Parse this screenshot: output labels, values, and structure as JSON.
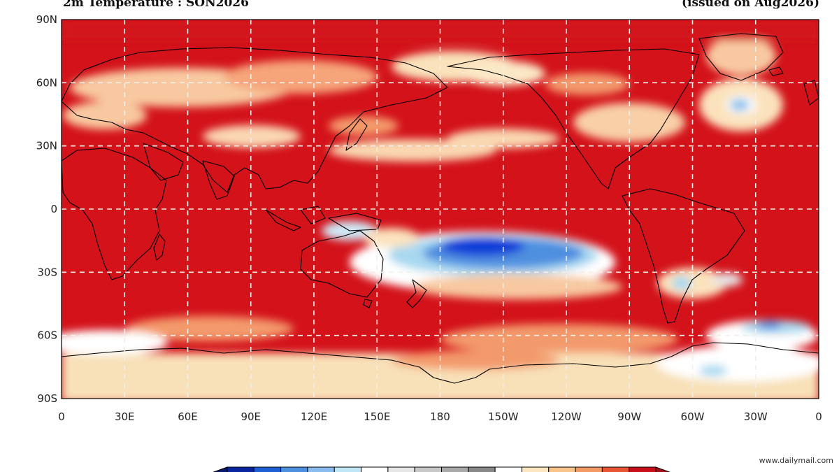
{
  "header": {
    "title": "2m Temperature : SON2026",
    "issued": "(issued on Aug2026)"
  },
  "axes": {
    "lat_labels": [
      "90N",
      "60N",
      "30N",
      "0",
      "30S",
      "60S",
      "90S"
    ],
    "lon_labels": [
      "0",
      "30E",
      "60E",
      "90E",
      "120E",
      "150E",
      "180",
      "150W",
      "120W",
      "90W",
      "60W",
      "30W",
      "0"
    ]
  },
  "colors": {
    "red": "#d3121a",
    "orange_red": "#ee4a2c",
    "orange": "#f69068",
    "peach": "#fac79e",
    "tan": "#f8e0b8",
    "white": "#ffffff",
    "light_blue": "#a8d8f0",
    "mid_blue": "#4f8fe0",
    "deep_blue": "#0a3cd8",
    "coast": "#000000",
    "grid": "#f2eee8"
  },
  "legend": {
    "colors": [
      "#08249e",
      "#1f5fd6",
      "#4f8fe0",
      "#89bcef",
      "#bfe6f7",
      "#ffffff",
      "#e6e6e6",
      "#c8c8c8",
      "#a8a8a8",
      "#888888",
      "#ffffff",
      "#fbe6c0",
      "#f8c48a",
      "#f39a64",
      "#e85535",
      "#c9101a"
    ]
  },
  "watermark": "www.dailymail.com"
}
